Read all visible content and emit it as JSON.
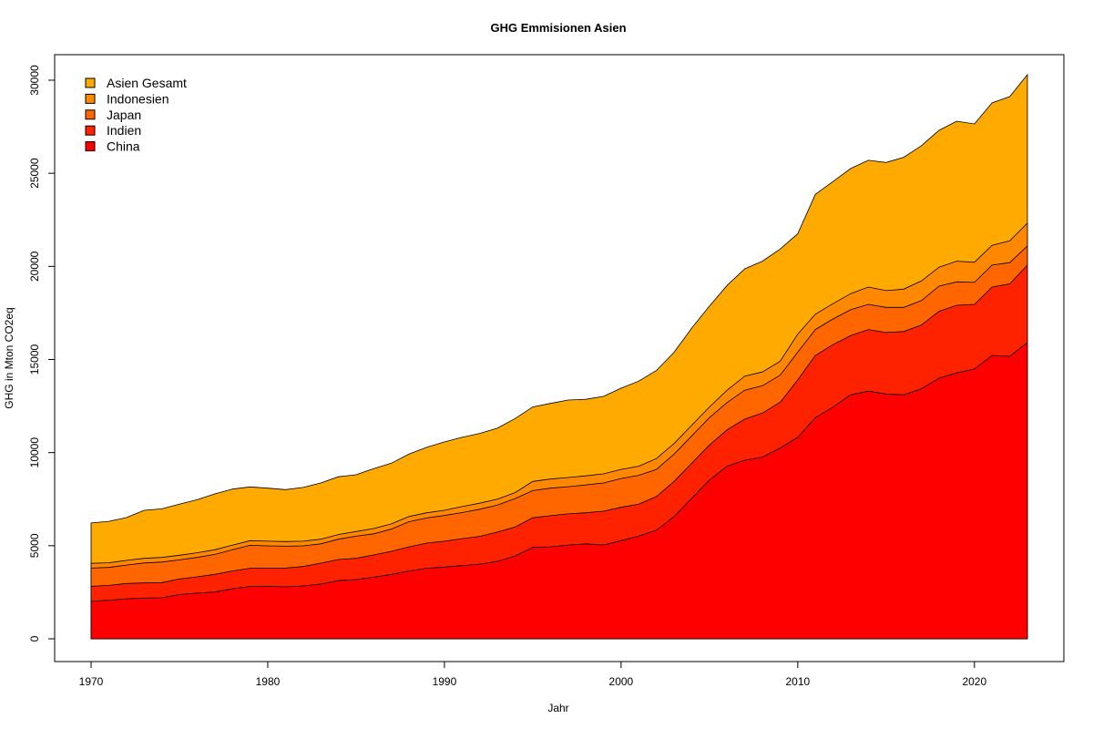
{
  "chart_data": {
    "type": "area",
    "stacked": true,
    "title": "GHG Emmisionen Asien",
    "xlabel": "Jahr",
    "ylabel": "GHG in Mton CO2eq",
    "xlim": [
      1970,
      2023
    ],
    "ylim": [
      0,
      30300
    ],
    "x_ticks": [
      "1970",
      "1980",
      "1990",
      "2000",
      "2010",
      "2020"
    ],
    "y_ticks": [
      "0",
      "5000",
      "10000",
      "15000",
      "20000",
      "25000",
      "30000"
    ],
    "grid": false,
    "legend_position": "top-left",
    "x": [
      1970,
      1971,
      1972,
      1973,
      1974,
      1975,
      1976,
      1977,
      1978,
      1979,
      1980,
      1981,
      1982,
      1983,
      1984,
      1985,
      1986,
      1987,
      1988,
      1989,
      1990,
      1991,
      1992,
      1993,
      1994,
      1995,
      1996,
      1997,
      1998,
      1999,
      2000,
      2001,
      2002,
      2003,
      2004,
      2005,
      2006,
      2007,
      2008,
      2009,
      2010,
      2011,
      2012,
      2013,
      2014,
      2015,
      2016,
      2017,
      2018,
      2019,
      2020,
      2021,
      2022,
      2023
    ],
    "series": [
      {
        "name": "China",
        "color": "#FF0000",
        "values": [
          2010,
          2070,
          2150,
          2190,
          2200,
          2380,
          2450,
          2510,
          2690,
          2810,
          2820,
          2790,
          2840,
          2940,
          3120,
          3180,
          3310,
          3460,
          3640,
          3790,
          3850,
          3930,
          4010,
          4160,
          4450,
          4910,
          4940,
          5030,
          5100,
          5030,
          5270,
          5520,
          5840,
          6570,
          7550,
          8530,
          9270,
          9590,
          9760,
          10250,
          10820,
          11880,
          12450,
          13100,
          13300,
          13150,
          13100,
          13430,
          14000,
          14280,
          14490,
          15220,
          15170,
          15910
        ]
      },
      {
        "name": "Indien",
        "color": "#FF2200",
        "values": [
          810,
          800,
          820,
          810,
          820,
          830,
          880,
          950,
          950,
          980,
          980,
          1010,
          1040,
          1120,
          1140,
          1140,
          1190,
          1240,
          1300,
          1350,
          1390,
          1450,
          1490,
          1570,
          1550,
          1590,
          1670,
          1680,
          1670,
          1820,
          1790,
          1710,
          1800,
          1880,
          1880,
          1880,
          1950,
          2210,
          2360,
          2450,
          3080,
          3340,
          3350,
          3180,
          3310,
          3300,
          3400,
          3420,
          3590,
          3630,
          3470,
          3670,
          3890,
          4160
        ]
      },
      {
        "name": "Japan",
        "color": "#FF6600",
        "values": [
          980,
          960,
          990,
          1070,
          1100,
          1030,
          1040,
          1070,
          1140,
          1230,
          1190,
          1170,
          1110,
          1040,
          1090,
          1190,
          1140,
          1190,
          1350,
          1350,
          1380,
          1400,
          1460,
          1450,
          1530,
          1460,
          1480,
          1460,
          1490,
          1520,
          1550,
          1550,
          1460,
          1470,
          1470,
          1470,
          1470,
          1550,
          1470,
          1460,
          1490,
          1390,
          1380,
          1390,
          1350,
          1350,
          1300,
          1310,
          1350,
          1260,
          1180,
          1180,
          1140,
          1030
        ]
      },
      {
        "name": "Indonesien",
        "color": "#FF8800",
        "values": [
          250,
          250,
          250,
          250,
          250,
          250,
          250,
          250,
          250,
          250,
          250,
          250,
          250,
          250,
          250,
          250,
          280,
          280,
          280,
          280,
          280,
          320,
          320,
          320,
          320,
          490,
          490,
          490,
          490,
          490,
          490,
          490,
          580,
          570,
          570,
          570,
          660,
          760,
          740,
          740,
          970,
          820,
          820,
          870,
          930,
          900,
          980,
          1060,
          1020,
          1110,
          1080,
          1060,
          1170,
          1220
        ]
      },
      {
        "name": "Asien Gesamt",
        "color": "#FFAA00",
        "values": [
          2170,
          2230,
          2300,
          2580,
          2610,
          2740,
          2850,
          3000,
          3010,
          2890,
          2850,
          2790,
          2890,
          3020,
          3100,
          3050,
          3220,
          3260,
          3350,
          3510,
          3670,
          3720,
          3750,
          3810,
          3980,
          4000,
          4060,
          4160,
          4110,
          4160,
          4360,
          4570,
          4730,
          4900,
          5220,
          5420,
          5630,
          5760,
          5950,
          6030,
          5390,
          6440,
          6560,
          6720,
          6810,
          6880,
          7080,
          7260,
          7350,
          7520,
          7430,
          7650,
          7750,
          7980
        ]
      }
    ],
    "legend": [
      "Asien Gesamt",
      "Indonesien",
      "Japan",
      "Indien",
      "China"
    ]
  }
}
